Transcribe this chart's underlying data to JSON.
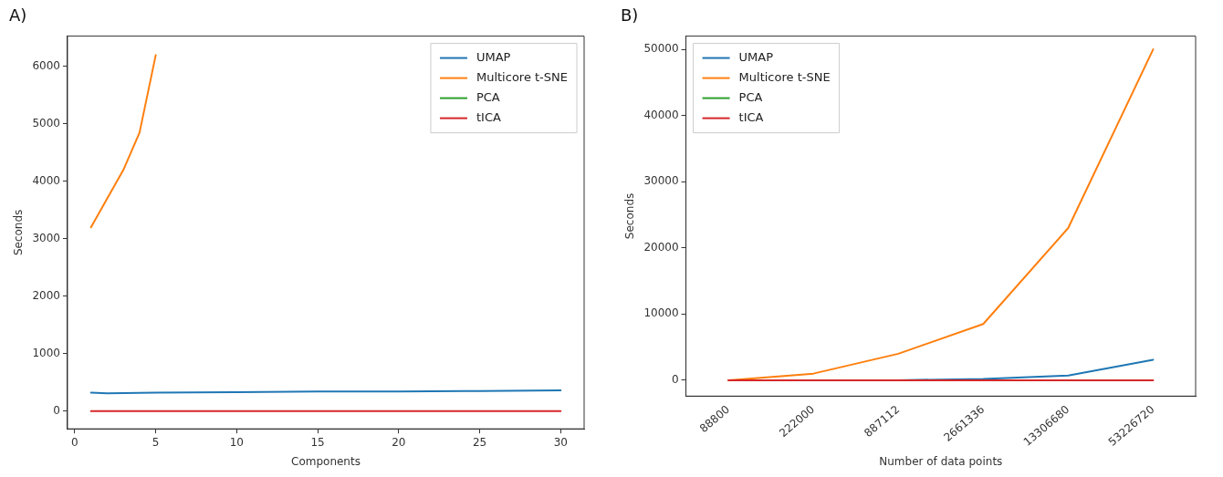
{
  "chart_data": [
    {
      "type": "line",
      "title": "A)",
      "xlabel": "Components",
      "ylabel": "Seconds",
      "xlim": [
        -0.45,
        31.45
      ],
      "xticks": [
        0,
        5,
        10,
        15,
        20,
        25,
        30
      ],
      "ylim": [
        -310,
        6530
      ],
      "yticks": [
        0,
        1000,
        2000,
        3000,
        4000,
        5000,
        6000
      ],
      "grid": false,
      "legend": "top right",
      "marker": "none",
      "line_style": "solid",
      "series": [
        {
          "name": "UMAP",
          "color": "#1f77b4",
          "x": [
            1,
            2,
            5,
            10,
            15,
            20,
            25,
            30
          ],
          "values": [
            320,
            310,
            320,
            330,
            340,
            340,
            350,
            360
          ]
        },
        {
          "name": "Multicore t-SNE",
          "color": "#ff7f0e",
          "x": [
            1,
            2,
            3,
            4,
            5
          ],
          "values": [
            3200,
            3700,
            4200,
            4850,
            6200
          ]
        },
        {
          "name": "PCA",
          "color": "#2ca02c"
        },
        {
          "name": "tICA",
          "color": "#d62728",
          "x": [
            1,
            5,
            10,
            15,
            20,
            25,
            30
          ],
          "values": [
            0,
            0,
            0,
            0,
            0,
            0,
            0
          ]
        }
      ]
    },
    {
      "type": "line",
      "title": "B)",
      "xlabel": "Number of data points",
      "ylabel": "Seconds",
      "categories": [
        "88800",
        "222000",
        "887112",
        "2661336",
        "13306680",
        "53226720"
      ],
      "ylim": [
        -2400,
        52000
      ],
      "yticks": [
        0,
        10000,
        20000,
        30000,
        40000,
        50000
      ],
      "grid": false,
      "legend": "top left",
      "marker": "none",
      "line_style": "solid",
      "series": [
        {
          "name": "UMAP",
          "color": "#1f77b4",
          "values": [
            null,
            null,
            0,
            200,
            700,
            3100
          ]
        },
        {
          "name": "Multicore t-SNE",
          "color": "#ff7f0e",
          "values": [
            0,
            1000,
            4000,
            8500,
            23000,
            50000
          ]
        },
        {
          "name": "PCA",
          "color": "#2ca02c",
          "values": [
            null,
            null,
            null,
            null,
            null,
            null
          ]
        },
        {
          "name": "tICA",
          "color": "#d62728",
          "values": [
            0,
            0,
            0,
            0,
            0,
            0
          ]
        }
      ]
    }
  ]
}
